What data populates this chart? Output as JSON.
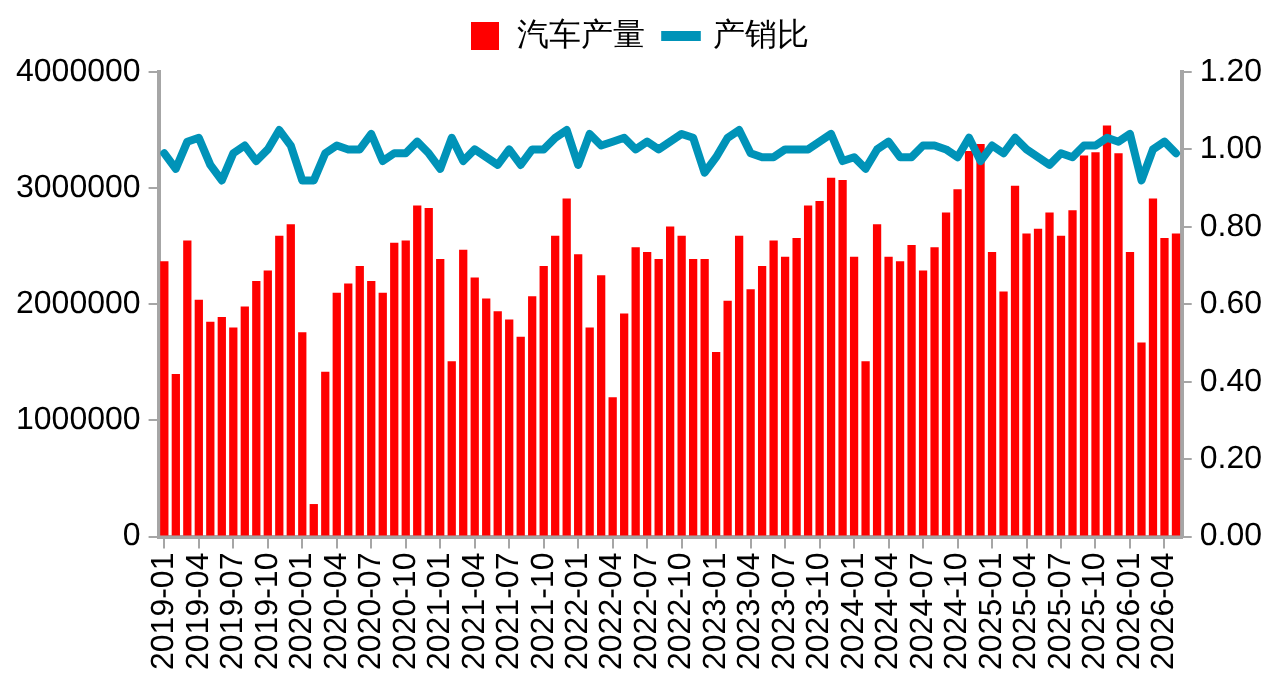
{
  "chart_data": {
    "type": "bar",
    "categories": [
      "2019-01",
      null,
      null,
      "2019-04",
      null,
      null,
      "2019-07",
      null,
      null,
      "2019-10",
      null,
      null,
      "2020-01",
      null,
      null,
      "2020-04",
      null,
      null,
      "2020-07",
      null,
      null,
      "2020-10",
      null,
      null,
      "2021-01",
      null,
      null,
      "2021-04",
      null,
      null,
      "2021-07",
      null,
      null,
      "2021-10",
      null,
      null,
      "2022-01",
      null,
      null,
      "2022-04",
      null,
      null,
      "2022-07",
      null,
      null,
      "2022-10",
      null,
      null,
      "2023-01",
      null,
      null,
      "2023-04",
      null,
      null,
      "2023-07",
      null,
      null,
      "2023-10",
      null,
      null,
      "2024-01",
      null,
      null,
      "2024-04",
      null,
      null,
      "2024-07",
      null,
      null,
      "2024-10",
      null,
      null,
      "2025-01",
      null,
      null,
      "2025-04",
      null,
      null,
      "2025-07",
      null,
      null,
      "2025-10",
      null,
      null,
      "2026-01",
      null,
      null,
      "2026-04",
      null
    ],
    "series": [
      {
        "name": "汽车产量",
        "color": "#ff0000",
        "values": [
          2370000,
          1400000,
          2550000,
          2040000,
          1850000,
          1890000,
          1800000,
          1980000,
          2200000,
          2290000,
          2590000,
          2690000,
          1760000,
          280000,
          1420000,
          2100000,
          2180000,
          2330000,
          2200000,
          2100000,
          2530000,
          2550000,
          2850000,
          2830000,
          2390000,
          1510000,
          2470000,
          2230000,
          2050000,
          1940000,
          1870000,
          1720000,
          2070000,
          2330000,
          2590000,
          2910000,
          2430000,
          1800000,
          2250000,
          1200000,
          1920000,
          2490000,
          2450000,
          2390000,
          2670000,
          2590000,
          2390000,
          2390000,
          1590000,
          2030000,
          2590000,
          2130000,
          2330000,
          2550000,
          2410000,
          2570000,
          2850000,
          2890000,
          3090000,
          3070000,
          2410000,
          1510000,
          2690000,
          2410000,
          2370000,
          2510000,
          2290000,
          2490000,
          2790000,
          2990000,
          3320000,
          3380000,
          2450000,
          2110000,
          3020000,
          2610000,
          2650000,
          2790000,
          2590000,
          2810000,
          3280000,
          3310000,
          3540000,
          3300000,
          2450000,
          1670000,
          2910000,
          2570000,
          2610000
        ]
      },
      {
        "name": "产销比",
        "type": "line",
        "axis": "y2",
        "color": "#0093b8",
        "values": [
          0.99,
          0.95,
          1.02,
          1.03,
          0.96,
          0.92,
          0.99,
          1.01,
          0.97,
          1.0,
          1.05,
          1.01,
          0.92,
          0.92,
          0.99,
          1.01,
          1.0,
          1.0,
          1.04,
          0.97,
          0.99,
          0.99,
          1.02,
          0.99,
          0.95,
          1.03,
          0.97,
          1.0,
          0.98,
          0.96,
          1.0,
          0.96,
          1.0,
          1.0,
          1.03,
          1.05,
          0.96,
          1.04,
          1.01,
          1.02,
          1.03,
          1.0,
          1.02,
          1.0,
          1.02,
          1.04,
          1.03,
          0.94,
          0.98,
          1.03,
          1.05,
          0.99,
          0.98,
          0.98,
          1.0,
          1.0,
          1.0,
          1.02,
          1.04,
          0.97,
          0.98,
          0.95,
          1.0,
          1.02,
          0.98,
          0.98,
          1.01,
          1.01,
          1.0,
          0.98,
          1.03,
          0.97,
          1.01,
          0.99,
          1.03,
          1.0,
          0.98,
          0.96,
          0.99,
          0.98,
          1.01,
          1.01,
          1.03,
          1.02,
          1.04,
          0.92,
          1.0,
          1.02,
          0.99
        ]
      }
    ],
    "ylim": [
      0,
      4000000
    ],
    "yticks": [
      0,
      1000000,
      2000000,
      3000000,
      4000000
    ],
    "y2lim": [
      0,
      1.2
    ],
    "y2ticks": [
      {
        "value": 0,
        "label": "0.00"
      },
      {
        "value": 0.2,
        "label": "0.20"
      },
      {
        "value": 0.4,
        "label": "0.40"
      },
      {
        "value": 0.6,
        "label": "0.60"
      },
      {
        "value": 0.8,
        "label": "0.80"
      },
      {
        "value": 1,
        "label": "1.00"
      },
      {
        "value": 1.2,
        "label": "1.20"
      }
    ],
    "grid": false,
    "legend": "top",
    "marker": "none",
    "line_style": "solid"
  }
}
